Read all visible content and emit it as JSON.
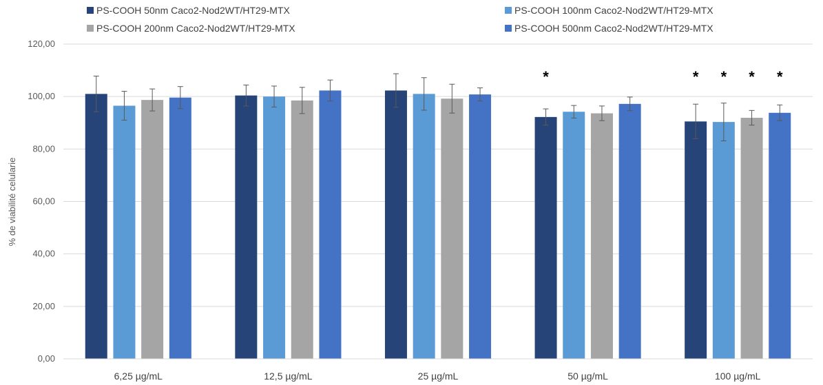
{
  "chart_data": {
    "type": "bar",
    "ylabel": "% de viabilité celularie",
    "ylim": [
      0,
      120
    ],
    "yticks": [
      "0,00",
      "20,00",
      "40,00",
      "60,00",
      "80,00",
      "100,00",
      "120,00"
    ],
    "ytick_values": [
      0,
      20,
      40,
      60,
      80,
      100,
      120
    ],
    "grid": true,
    "legend_position": "top",
    "categories": [
      "6,25 µg/mL",
      "12,5 µg/mL",
      "25 µg/mL",
      "50 µg/mL",
      "100 µg/mL"
    ],
    "series": [
      {
        "name": "PS-COOH 50nm Caco2-Nod2WT/HT29-MTX",
        "color": "#264478",
        "values": [
          101.0,
          100.4,
          102.3,
          92.2,
          90.5
        ],
        "errors": [
          6.8,
          4.0,
          6.4,
          3.1,
          6.6
        ]
      },
      {
        "name": "PS-COOH 100nm Caco2-Nod2WT/HT29-MTX",
        "color": "#5B9BD5",
        "values": [
          96.5,
          100.0,
          101.0,
          94.2,
          90.3
        ],
        "errors": [
          5.5,
          4.0,
          6.2,
          2.4,
          7.2
        ]
      },
      {
        "name": "PS-COOH 200nm Caco2-Nod2WT/HT29-MTX",
        "color": "#A5A5A5",
        "values": [
          98.7,
          98.5,
          99.2,
          93.6,
          91.9
        ],
        "errors": [
          4.2,
          5.0,
          5.5,
          2.8,
          2.8
        ]
      },
      {
        "name": "PS-COOH 500nm Caco2-Nod2WT/HT29-MTX",
        "color": "#4472C4",
        "values": [
          99.6,
          102.3,
          100.8,
          97.2,
          93.8
        ],
        "errors": [
          4.2,
          4.0,
          2.5,
          2.6,
          3.0
        ]
      }
    ],
    "annotations": [
      {
        "category_index": 3,
        "series_index": 0,
        "text": "*"
      },
      {
        "category_index": 4,
        "series_index": 0,
        "text": "*"
      },
      {
        "category_index": 4,
        "series_index": 1,
        "text": "*"
      },
      {
        "category_index": 4,
        "series_index": 2,
        "text": "*"
      },
      {
        "category_index": 4,
        "series_index": 3,
        "text": "*"
      }
    ]
  }
}
